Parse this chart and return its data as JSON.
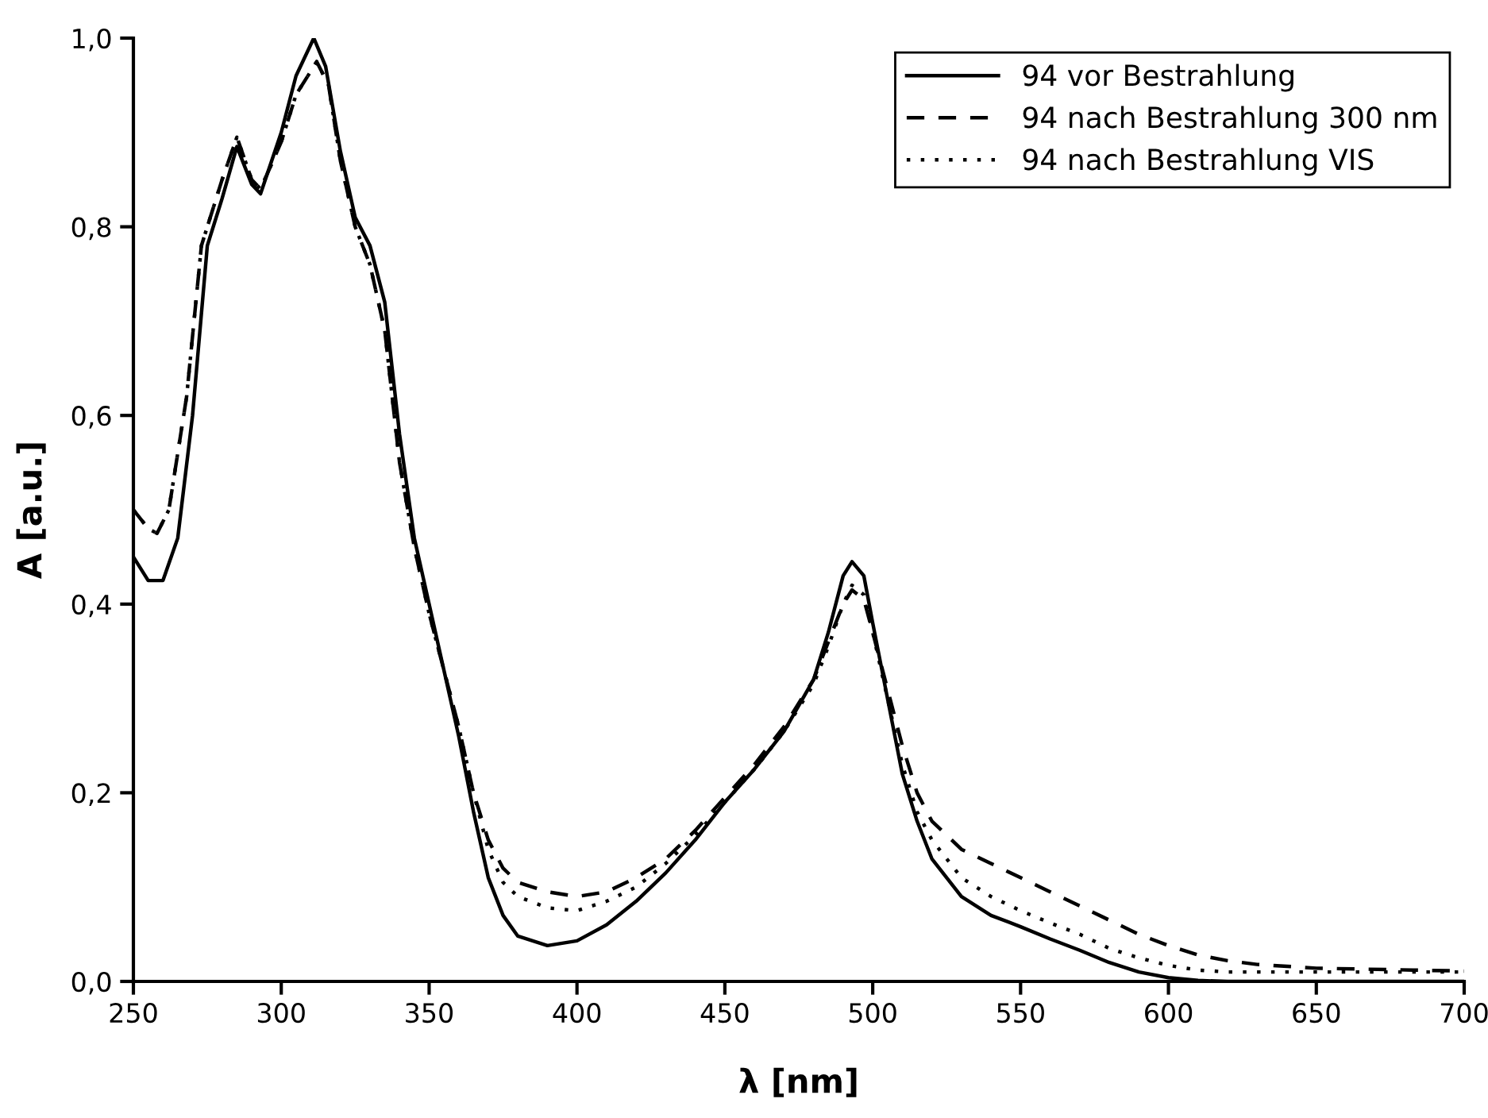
{
  "chart_data": {
    "type": "line",
    "xlabel": "λ [nm]",
    "ylabel": "A [a.u.]",
    "xlim": [
      250,
      700
    ],
    "xticks": [
      250,
      300,
      350,
      400,
      450,
      500,
      550,
      600,
      650,
      700
    ],
    "ylim": [
      0,
      1.0
    ],
    "yticks": [
      {
        "value": 0,
        "label": "0,0"
      },
      {
        "value": 0.2,
        "label": "0,2"
      },
      {
        "value": 0.4,
        "label": "0,4"
      },
      {
        "value": 0.6,
        "label": "0,6"
      },
      {
        "value": 0.8,
        "label": "0,8"
      },
      {
        "value": 1.0,
        "label": "1,0"
      }
    ],
    "grid": false,
    "legend": "top right",
    "marker": "none",
    "series": [
      {
        "name": "94 vor Bestrahlung",
        "color": "#000000",
        "line_style": "solid",
        "x": [
          250,
          255,
          260,
          265,
          270,
          275,
          280,
          285,
          290,
          293,
          300,
          305,
          311,
          315,
          320,
          325,
          330,
          335,
          340,
          345,
          350,
          355,
          360,
          365,
          370,
          375,
          380,
          390,
          400,
          410,
          420,
          430,
          440,
          450,
          460,
          470,
          480,
          485,
          490,
          493,
          497,
          500,
          505,
          510,
          515,
          520,
          530,
          540,
          550,
          560,
          570,
          580,
          590,
          600,
          610,
          620,
          650,
          700
        ],
        "values": [
          0.45,
          0.425,
          0.425,
          0.47,
          0.6,
          0.78,
          0.83,
          0.885,
          0.845,
          0.835,
          0.9,
          0.96,
          1.0,
          0.97,
          0.88,
          0.81,
          0.78,
          0.72,
          0.58,
          0.47,
          0.4,
          0.33,
          0.26,
          0.18,
          0.11,
          0.07,
          0.048,
          0.038,
          0.043,
          0.06,
          0.085,
          0.115,
          0.15,
          0.19,
          0.225,
          0.265,
          0.32,
          0.37,
          0.43,
          0.445,
          0.43,
          0.38,
          0.3,
          0.22,
          0.17,
          0.13,
          0.09,
          0.07,
          0.058,
          0.045,
          0.033,
          0.02,
          0.01,
          0.004,
          0.001,
          0,
          0,
          0
        ]
      },
      {
        "name": "94 nach Bestrahlung 300 nm",
        "color": "#000000",
        "line_style": "dashed",
        "x": [
          250,
          255,
          258,
          262,
          268,
          273,
          280,
          285,
          290,
          293,
          300,
          305,
          312,
          316,
          320,
          325,
          330,
          335,
          340,
          345,
          350,
          355,
          360,
          365,
          370,
          375,
          380,
          390,
          400,
          410,
          420,
          430,
          440,
          450,
          460,
          470,
          480,
          485,
          490,
          493,
          497,
          500,
          505,
          510,
          515,
          520,
          530,
          540,
          550,
          560,
          570,
          580,
          590,
          600,
          610,
          620,
          630,
          650,
          700
        ],
        "values": [
          0.5,
          0.48,
          0.475,
          0.5,
          0.62,
          0.78,
          0.85,
          0.895,
          0.85,
          0.84,
          0.89,
          0.94,
          0.975,
          0.95,
          0.87,
          0.8,
          0.76,
          0.69,
          0.55,
          0.46,
          0.39,
          0.33,
          0.27,
          0.2,
          0.15,
          0.12,
          0.105,
          0.095,
          0.09,
          0.095,
          0.11,
          0.13,
          0.16,
          0.195,
          0.23,
          0.27,
          0.32,
          0.36,
          0.4,
          0.415,
          0.405,
          0.37,
          0.31,
          0.25,
          0.2,
          0.17,
          0.14,
          0.125,
          0.11,
          0.095,
          0.08,
          0.065,
          0.05,
          0.038,
          0.028,
          0.022,
          0.018,
          0.014,
          0.011
        ]
      },
      {
        "name": "94 nach Bestrahlung VIS",
        "color": "#000000",
        "line_style": "dotted",
        "x": [
          250,
          255,
          258,
          262,
          268,
          273,
          280,
          285,
          290,
          293,
          300,
          305,
          312,
          316,
          320,
          325,
          330,
          335,
          340,
          345,
          350,
          355,
          360,
          365,
          370,
          375,
          380,
          390,
          400,
          410,
          420,
          430,
          440,
          450,
          460,
          470,
          480,
          485,
          490,
          493,
          497,
          500,
          505,
          510,
          515,
          520,
          530,
          540,
          550,
          560,
          570,
          580,
          590,
          600,
          610,
          620,
          650,
          700
        ],
        "values": [
          0.5,
          0.48,
          0.475,
          0.5,
          0.62,
          0.78,
          0.85,
          0.895,
          0.85,
          0.84,
          0.89,
          0.94,
          0.975,
          0.95,
          0.87,
          0.8,
          0.76,
          0.69,
          0.55,
          0.46,
          0.39,
          0.33,
          0.27,
          0.2,
          0.14,
          0.105,
          0.09,
          0.078,
          0.075,
          0.085,
          0.1,
          0.125,
          0.155,
          0.19,
          0.225,
          0.265,
          0.315,
          0.355,
          0.4,
          0.42,
          0.41,
          0.37,
          0.3,
          0.23,
          0.18,
          0.15,
          0.11,
          0.09,
          0.075,
          0.062,
          0.05,
          0.035,
          0.025,
          0.017,
          0.012,
          0.01,
          0.01,
          0.01
        ]
      }
    ]
  }
}
